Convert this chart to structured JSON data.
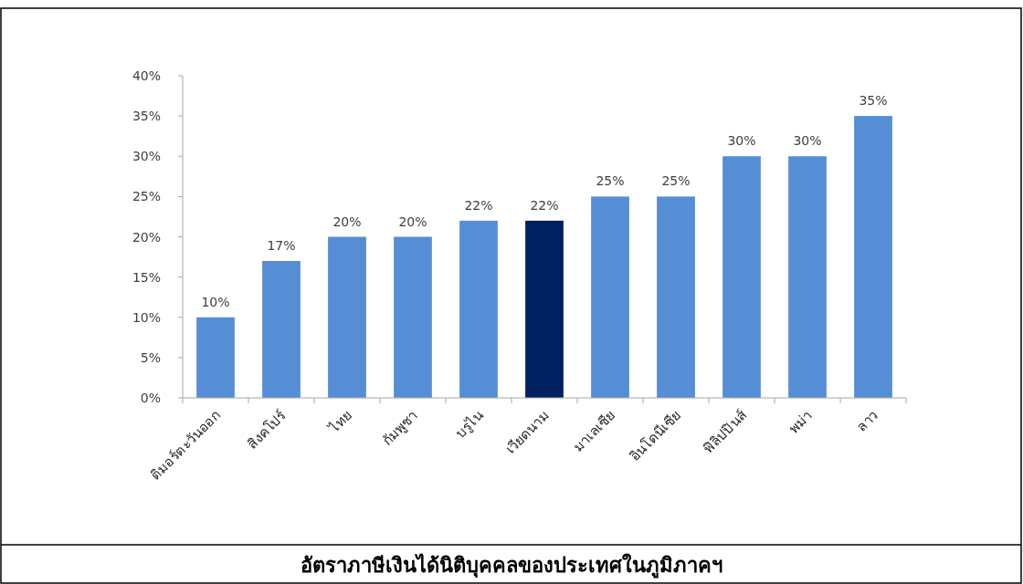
{
  "chart_data": {
    "type": "bar",
    "title": "อัตราภาษีเงินได้นิติบุคคลของประเทศในภูมิภาคฯ",
    "categories": [
      "ติมอร์ตะวันออก",
      "สิงคโปร์",
      "ไทย",
      "กัมพูชา",
      "บรูไน",
      "เวียดนาม",
      "มาเลเซีย",
      "อินโดนีเซีย",
      "ฟิลิปปินส์",
      "พม่า",
      "ลาว"
    ],
    "values": [
      10,
      17,
      20,
      20,
      22,
      22,
      25,
      25,
      30,
      30,
      35
    ],
    "colors": [
      "#558ed5",
      "#558ed5",
      "#558ed5",
      "#558ed5",
      "#558ed5",
      "#002060",
      "#558ed5",
      "#558ed5",
      "#558ed5",
      "#558ed5",
      "#558ed5"
    ],
    "value_labels": [
      "10%",
      "17%",
      "20%",
      "20%",
      "22%",
      "22%",
      "25%",
      "25%",
      "30%",
      "30%",
      "35%"
    ],
    "ylim": [
      0,
      40
    ],
    "yticks": [
      {
        "value": 0,
        "label": "0%"
      },
      {
        "value": 5,
        "label": "5%"
      },
      {
        "value": 10,
        "label": "10%"
      },
      {
        "value": 15,
        "label": "15%"
      },
      {
        "value": 20,
        "label": "20%"
      },
      {
        "value": 25,
        "label": "25%"
      },
      {
        "value": 30,
        "label": "30%"
      },
      {
        "value": 35,
        "label": "35%"
      },
      {
        "value": 40,
        "label": "40%"
      }
    ]
  }
}
